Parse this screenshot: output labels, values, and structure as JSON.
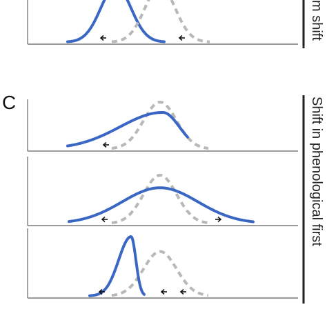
{
  "labels": {
    "panel_c": "C",
    "top_side_label": "m shift",
    "side_label_c": "Shift in phenological first"
  },
  "colors": {
    "observed_curve": "#3a66c4",
    "reference_curve": "#b8b8b8",
    "arrow": "#111111",
    "axis": "#7a7a7a",
    "bracket": "#222222"
  },
  "chart_data": [
    {
      "type": "line",
      "panel": "top (partial)",
      "series": [
        {
          "style": "solid",
          "color": "#3a66c4",
          "mean": 168,
          "sd": 22,
          "peak": 1.0,
          "start": 98,
          "end": 238
        },
        {
          "style": "dashed",
          "color": "#b8b8b8",
          "mean": 232,
          "sd": 22,
          "peak": 1.0,
          "start": 162,
          "end": 304
        }
      ],
      "arrows": [
        {
          "direction": "left",
          "x": 154
        },
        {
          "direction": "left",
          "x": 268
        }
      ]
    },
    {
      "type": "line",
      "panel": "C-1",
      "series": [
        {
          "style": "dashed",
          "color": "#b8b8b8",
          "mean": 232,
          "sd": 24,
          "peak": 1.0,
          "start": 162,
          "end": 302
        },
        {
          "style": "solid",
          "color": "#3a66c4",
          "mean": 236,
          "sd_left": 62,
          "sd_right": 24,
          "peak": 0.78,
          "start": 98,
          "end": 272
        }
      ],
      "arrows": [
        {
          "direction": "left",
          "x": 158
        }
      ]
    },
    {
      "type": "line",
      "panel": "C-2",
      "series": [
        {
          "style": "dashed",
          "color": "#b8b8b8",
          "mean": 232,
          "sd": 24,
          "peak": 1.0,
          "start": 162,
          "end": 302
        },
        {
          "style": "solid",
          "color": "#3a66c4",
          "mean": 232,
          "sd": 55,
          "peak": 0.74,
          "start": 100,
          "end": 367
        }
      ],
      "arrows": [
        {
          "direction": "left",
          "x": 156
        },
        {
          "direction": "right",
          "x": 312
        }
      ]
    },
    {
      "type": "line",
      "panel": "C-3",
      "series": [
        {
          "style": "dashed",
          "color": "#b8b8b8",
          "mean": 232,
          "sd": 24,
          "peak": 0.75,
          "start": 162,
          "end": 302
        },
        {
          "style": "solid",
          "color": "#3a66c4",
          "mean": 190,
          "sd_left": 18,
          "sd_right": 7,
          "peak": 1.0,
          "start": 130,
          "end": 209
        }
      ],
      "arrows": [
        {
          "direction": "left",
          "x": 152
        },
        {
          "direction": "left",
          "x": 242
        },
        {
          "direction": "left",
          "x": 270
        }
      ]
    }
  ]
}
